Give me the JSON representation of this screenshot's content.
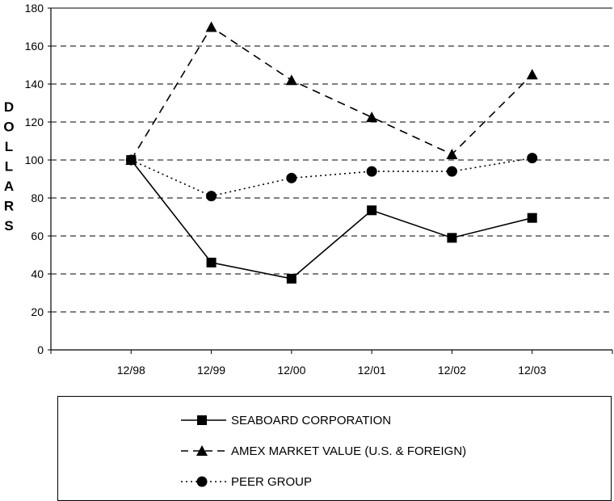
{
  "chart_data": {
    "type": "line",
    "categories": [
      "12/98",
      "12/99",
      "12/00",
      "12/01",
      "12/02",
      "12/03"
    ],
    "series": [
      {
        "name": "SEABOARD CORPORATION",
        "marker": "square",
        "dash": "solid",
        "values": [
          100,
          46,
          37.5,
          73.5,
          59,
          69.5
        ]
      },
      {
        "name": "AMEX MARKET VALUE (U.S. & FOREIGN)",
        "marker": "triangle",
        "dash": "dashed",
        "values": [
          100,
          170,
          142,
          122.5,
          103,
          145
        ]
      },
      {
        "name": "PEER GROUP",
        "marker": "circle",
        "dash": "dotted",
        "values": [
          100,
          81,
          90.5,
          94,
          94,
          101
        ]
      }
    ],
    "ylim": [
      0,
      180
    ],
    "yticks": [
      "0",
      "20",
      "40",
      "60",
      "80",
      "100",
      "120",
      "140",
      "160",
      "180"
    ],
    "ylabel": "DOLLARS",
    "grid": "horizontal-dashed",
    "legend_position": "bottom"
  }
}
